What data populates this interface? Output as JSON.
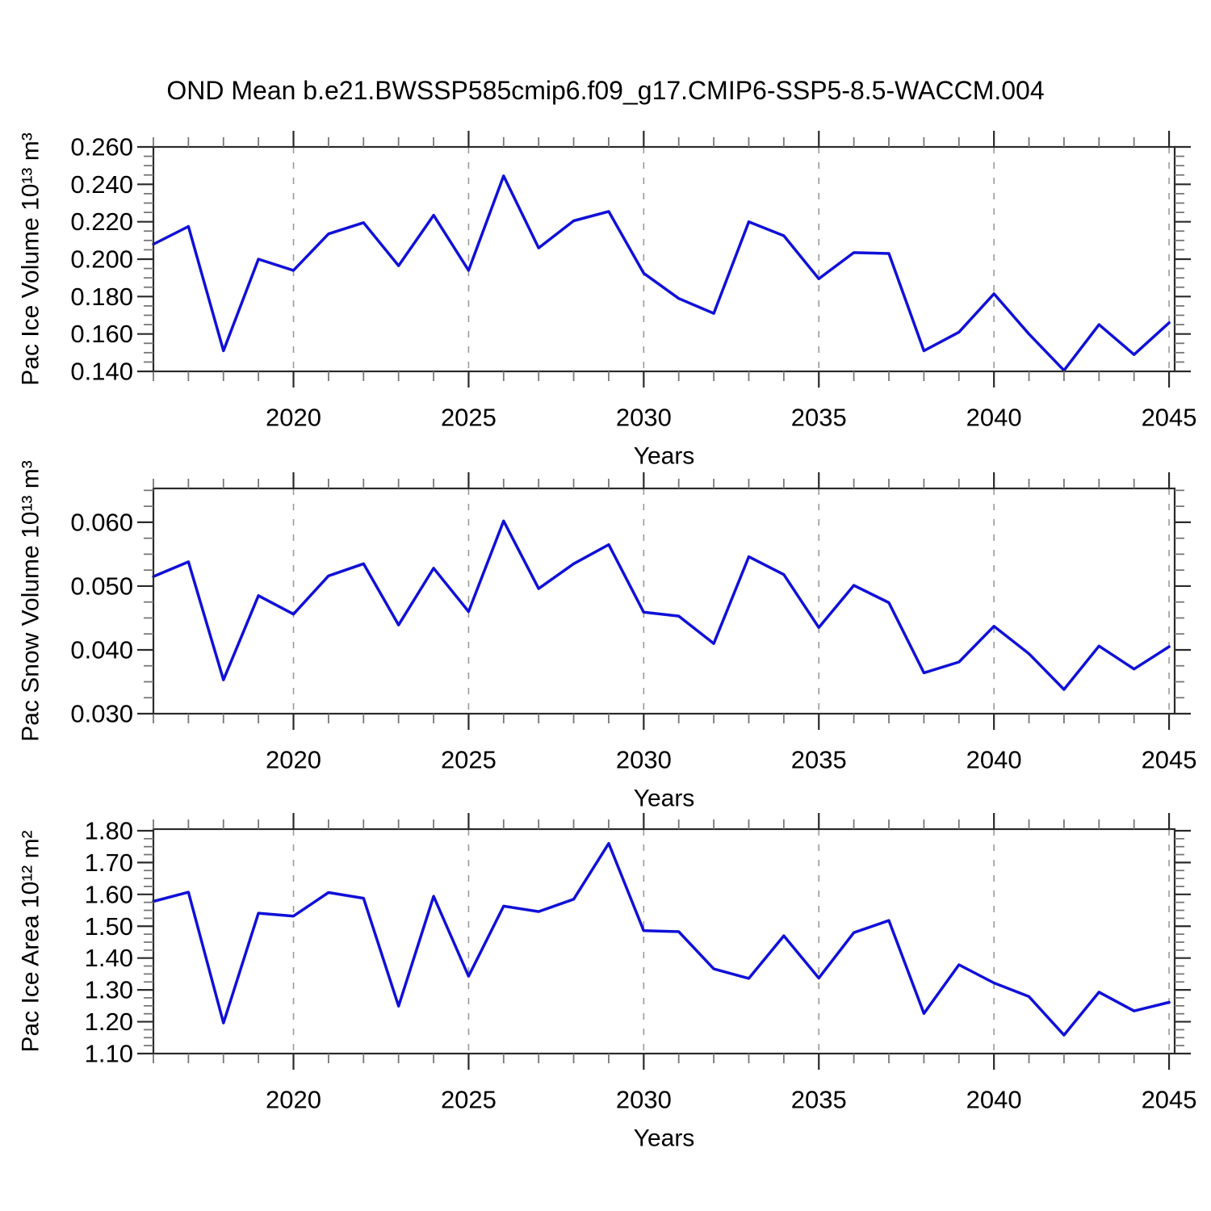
{
  "title": "OND Mean b.e21.BWSSP585cmip6.f09_g17.CMIP6-SSP5-8.5-WACCM.004",
  "line_color": "#1010d8",
  "grid_color": "#9a9a9a",
  "frame_color": "#2a2a2a",
  "minor_tick_color": "#777777",
  "chart_data": [
    {
      "type": "line",
      "name": "pac-ice-volume",
      "ylabel": "Pac Ice Volume 10¹³ m³",
      "xlabel": "Years",
      "legend": "none",
      "grid": "vertical-dashed-at-major-x",
      "x": [
        2016,
        2017,
        2018,
        2019,
        2020,
        2021,
        2022,
        2023,
        2024,
        2025,
        2026,
        2027,
        2028,
        2029,
        2030,
        2031,
        2032,
        2033,
        2034,
        2035,
        2036,
        2037,
        2038,
        2039,
        2040,
        2041,
        2042,
        2043,
        2044,
        2045
      ],
      "values": [
        0.208,
        0.2175,
        0.151,
        0.2,
        0.194,
        0.2135,
        0.2195,
        0.1965,
        0.2235,
        0.194,
        0.2445,
        0.206,
        0.2205,
        0.2255,
        0.1925,
        0.179,
        0.171,
        0.22,
        0.2125,
        0.1895,
        0.2035,
        0.203,
        0.151,
        0.161,
        0.1815,
        0.16,
        0.1405,
        0.165,
        0.149,
        0.166
      ],
      "xlim": [
        2016,
        2045.16
      ],
      "ylim": [
        0.14,
        0.26
      ],
      "yticks": [
        0.14,
        0.16,
        0.18,
        0.2,
        0.22,
        0.24,
        0.26
      ],
      "ytick_labels": [
        "0.140",
        "0.160",
        "0.180",
        "0.200",
        "0.220",
        "0.240",
        "0.260"
      ],
      "y_minor_step": 0.005,
      "xticks": [
        2020,
        2025,
        2030,
        2035,
        2040,
        2045
      ],
      "xtick_labels": [
        "2020",
        "2025",
        "2030",
        "2035",
        "2040",
        "2045"
      ],
      "x_minor_step": 1,
      "grid_years": [
        2020,
        2025,
        2030,
        2035,
        2040,
        2045
      ]
    },
    {
      "type": "line",
      "name": "pac-snow-volume",
      "ylabel": "Pac Snow Volume 10¹³ m³",
      "xlabel": "Years",
      "legend": "none",
      "grid": "vertical-dashed-at-major-x",
      "x": [
        2016,
        2017,
        2018,
        2019,
        2020,
        2021,
        2022,
        2023,
        2024,
        2025,
        2026,
        2027,
        2028,
        2029,
        2030,
        2031,
        2032,
        2033,
        2034,
        2035,
        2036,
        2037,
        2038,
        2039,
        2040,
        2041,
        2042,
        2043,
        2044,
        2045
      ],
      "values": [
        0.0515,
        0.0538,
        0.0353,
        0.0485,
        0.0456,
        0.0516,
        0.0535,
        0.0439,
        0.0528,
        0.046,
        0.0602,
        0.0496,
        0.0535,
        0.0565,
        0.0459,
        0.0453,
        0.041,
        0.0546,
        0.0518,
        0.0435,
        0.0501,
        0.0474,
        0.0364,
        0.0381,
        0.0437,
        0.0394,
        0.0338,
        0.0406,
        0.037,
        0.0405
      ],
      "xlim": [
        2016,
        2045.16
      ],
      "ylim": [
        0.03,
        0.0653
      ],
      "yticks": [
        0.03,
        0.04,
        0.05,
        0.06
      ],
      "ytick_labels": [
        "0.030",
        "0.040",
        "0.050",
        "0.060"
      ],
      "y_minor_step": 0.0025,
      "xticks": [
        2020,
        2025,
        2030,
        2035,
        2040,
        2045
      ],
      "xtick_labels": [
        "2020",
        "2025",
        "2030",
        "2035",
        "2040",
        "2045"
      ],
      "x_minor_step": 1,
      "grid_years": [
        2020,
        2025,
        2030,
        2035,
        2040,
        2045
      ]
    },
    {
      "type": "line",
      "name": "pac-ice-area",
      "ylabel": "Pac Ice Area 10¹² m²",
      "xlabel": "Years",
      "legend": "none",
      "grid": "vertical-dashed-at-major-x",
      "x": [
        2016,
        2017,
        2018,
        2019,
        2020,
        2021,
        2022,
        2023,
        2024,
        2025,
        2026,
        2027,
        2028,
        2029,
        2030,
        2031,
        2032,
        2033,
        2034,
        2035,
        2036,
        2037,
        2038,
        2039,
        2040,
        2041,
        2042,
        2043,
        2044,
        2045
      ],
      "values": [
        1.578,
        1.607,
        1.196,
        1.541,
        1.532,
        1.606,
        1.588,
        1.249,
        1.594,
        1.343,
        1.563,
        1.546,
        1.585,
        1.76,
        1.486,
        1.483,
        1.366,
        1.336,
        1.47,
        1.337,
        1.48,
        1.518,
        1.226,
        1.379,
        1.322,
        1.279,
        1.158,
        1.293,
        1.234,
        1.261
      ],
      "xlim": [
        2016,
        2045.16
      ],
      "ylim": [
        1.1,
        1.805
      ],
      "yticks": [
        1.1,
        1.2,
        1.3,
        1.4,
        1.5,
        1.6,
        1.7,
        1.8
      ],
      "ytick_labels": [
        "1.10",
        "1.20",
        "1.30",
        "1.40",
        "1.50",
        "1.60",
        "1.70",
        "1.80"
      ],
      "y_minor_step": 0.025,
      "xticks": [
        2020,
        2025,
        2030,
        2035,
        2040,
        2045
      ],
      "xtick_labels": [
        "2020",
        "2025",
        "2030",
        "2035",
        "2040",
        "2045"
      ],
      "x_minor_step": 1,
      "grid_years": [
        2020,
        2025,
        2030,
        2035,
        2040,
        2045
      ]
    }
  ]
}
